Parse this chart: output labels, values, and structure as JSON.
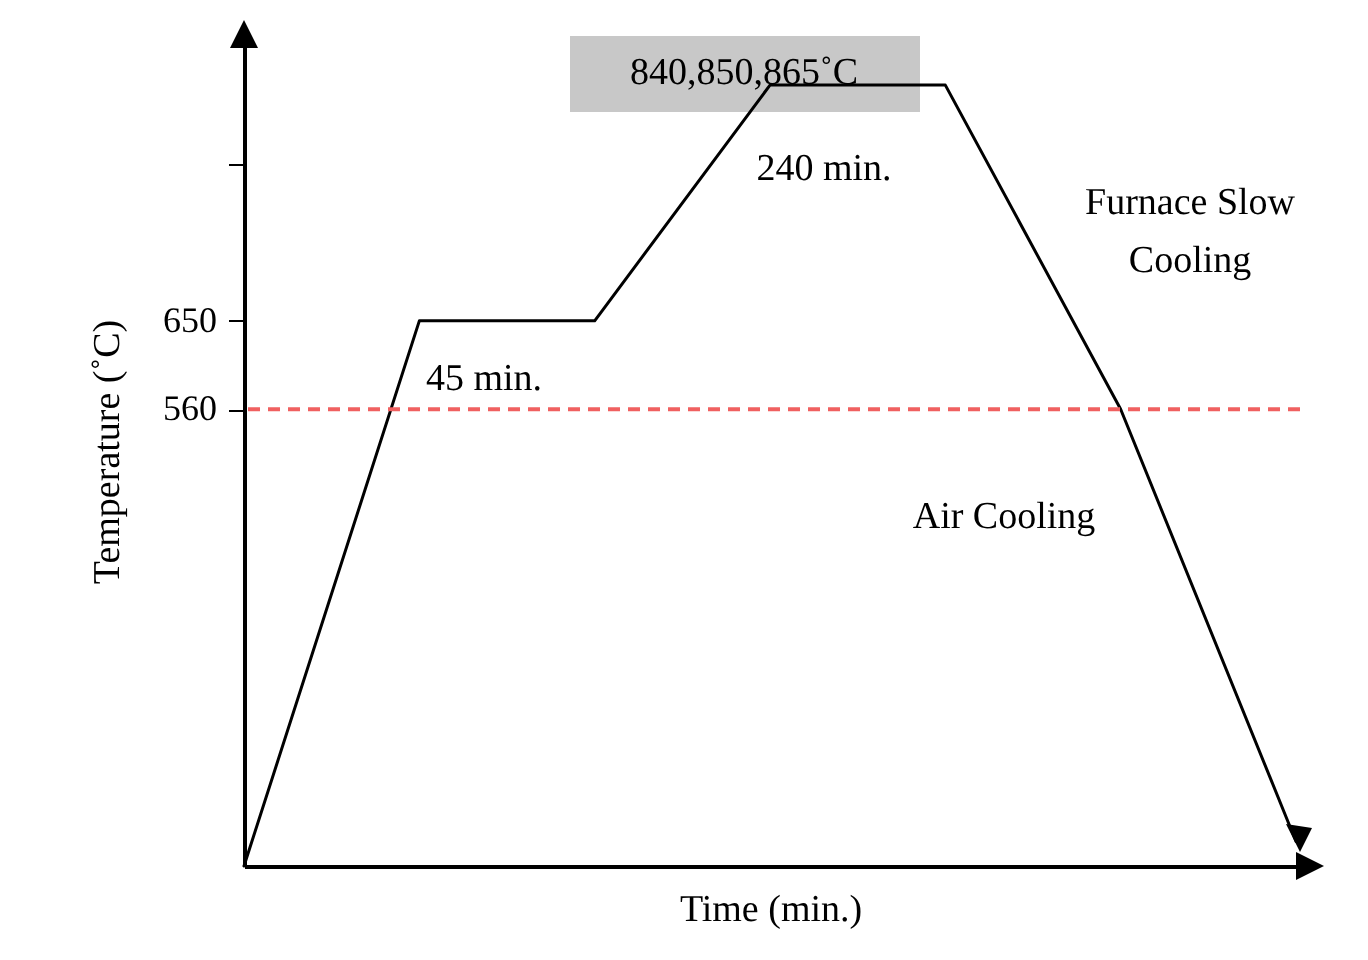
{
  "chart_data": {
    "type": "line",
    "xlabel": "Time (min.)",
    "ylabel": "Temperature (˚C)",
    "categories": [
      null,
      null,
      null,
      null,
      null,
      null,
      null
    ],
    "series": [
      {
        "color": "#000000",
        "values": [
          95,
          650,
          650,
          890,
          890,
          560,
          120
        ]
      }
    ],
    "ylim": [
      95,
      940
    ],
    "yticks": [
      560,
      650,
      {
        "value": 810,
        "label": null
      }
    ],
    "tick_labels": "y",
    "grid": false,
    "ref_lines": [
      {
        "axis": "y",
        "value": 560,
        "color": "#f06060",
        "line_style": "dashed"
      }
    ],
    "annotations": [
      "840,850,865˚C",
      "240 min.",
      "45 min.",
      "Furnace Slow Cooling",
      "Air Cooling"
    ]
  }
}
